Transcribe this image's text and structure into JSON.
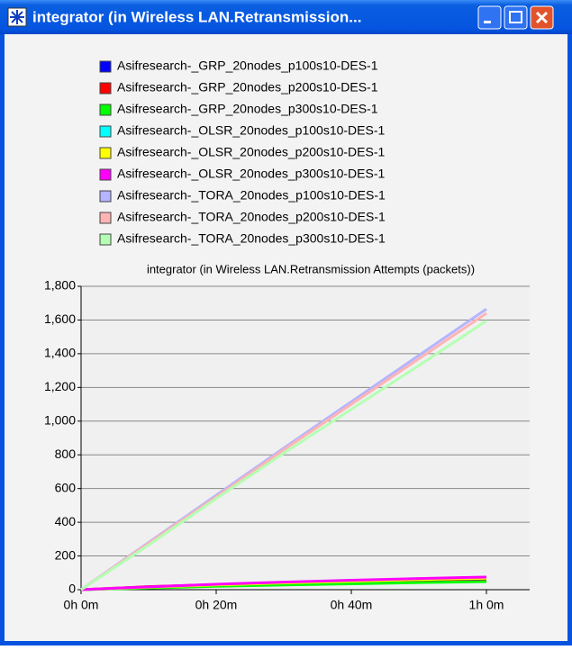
{
  "window_title": "integrator (in Wireless LAN.Retransmission...",
  "chart_data": {
    "type": "line",
    "title": "integrator (in Wireless LAN.Retransmission Attempts (packets))",
    "x": [
      0,
      10,
      20,
      30,
      40,
      50,
      60
    ],
    "xlim": [
      0,
      66.4
    ],
    "xticks": [
      {
        "value": 0,
        "label": "0h 0m"
      },
      {
        "value": 20,
        "label": "0h 20m"
      },
      {
        "value": 40,
        "label": "0h 40m"
      },
      {
        "value": 60,
        "label": "1h 0m"
      }
    ],
    "ylim": [
      0,
      1800
    ],
    "yticks": [
      0,
      200,
      400,
      600,
      800,
      {
        "value": 1000,
        "label": "1,000"
      },
      {
        "value": 1200,
        "label": "1,200"
      },
      {
        "value": 1400,
        "label": "1,400"
      },
      {
        "value": 1600,
        "label": "1,600"
      },
      {
        "value": 1800,
        "label": "1,800"
      }
    ],
    "grid": true,
    "series": [
      {
        "name": "Asifresearch-_GRP_20nodes_p100s10-DES-1",
        "color": "#0000ff",
        "values": [
          0,
          15,
          25,
          35,
          42,
          48,
          55
        ]
      },
      {
        "name": "Asifresearch-_GRP_20nodes_p200s10-DES-1",
        "color": "#ff0000",
        "values": [
          0,
          18,
          30,
          40,
          50,
          58,
          65
        ]
      },
      {
        "name": "Asifresearch-_GRP_20nodes_p300s10-DES-1",
        "color": "#00ff00",
        "values": [
          0,
          10,
          20,
          28,
          35,
          42,
          48
        ]
      },
      {
        "name": "Asifresearch-_OLSR_20nodes_p100s10-DES-1",
        "color": "#00ffff",
        "values": [
          0,
          15,
          30,
          42,
          52,
          62,
          70
        ]
      },
      {
        "name": "Asifresearch-_OLSR_20nodes_p200s10-DES-1",
        "color": "#ffff00",
        "values": [
          0,
          15,
          28,
          40,
          50,
          60,
          68
        ]
      },
      {
        "name": "Asifresearch-_OLSR_20nodes_p300s10-DES-1",
        "color": "#ff00ff",
        "values": [
          0,
          17,
          32,
          45,
          56,
          66,
          75
        ]
      },
      {
        "name": "Asifresearch-_TORA_20nodes_p100s10-DES-1",
        "color": "#b4b4ff",
        "values": [
          0,
          280,
          560,
          840,
          1115,
          1390,
          1665
        ]
      },
      {
        "name": "Asifresearch-_TORA_20nodes_p200s10-DES-1",
        "color": "#ffb4b4",
        "values": [
          0,
          275,
          550,
          830,
          1100,
          1370,
          1640
        ]
      },
      {
        "name": "Asifresearch-_TORA_20nodes_p300s10-DES-1",
        "color": "#b4ffb4",
        "values": [
          0,
          265,
          540,
          810,
          1070,
          1330,
          1595
        ]
      }
    ]
  }
}
